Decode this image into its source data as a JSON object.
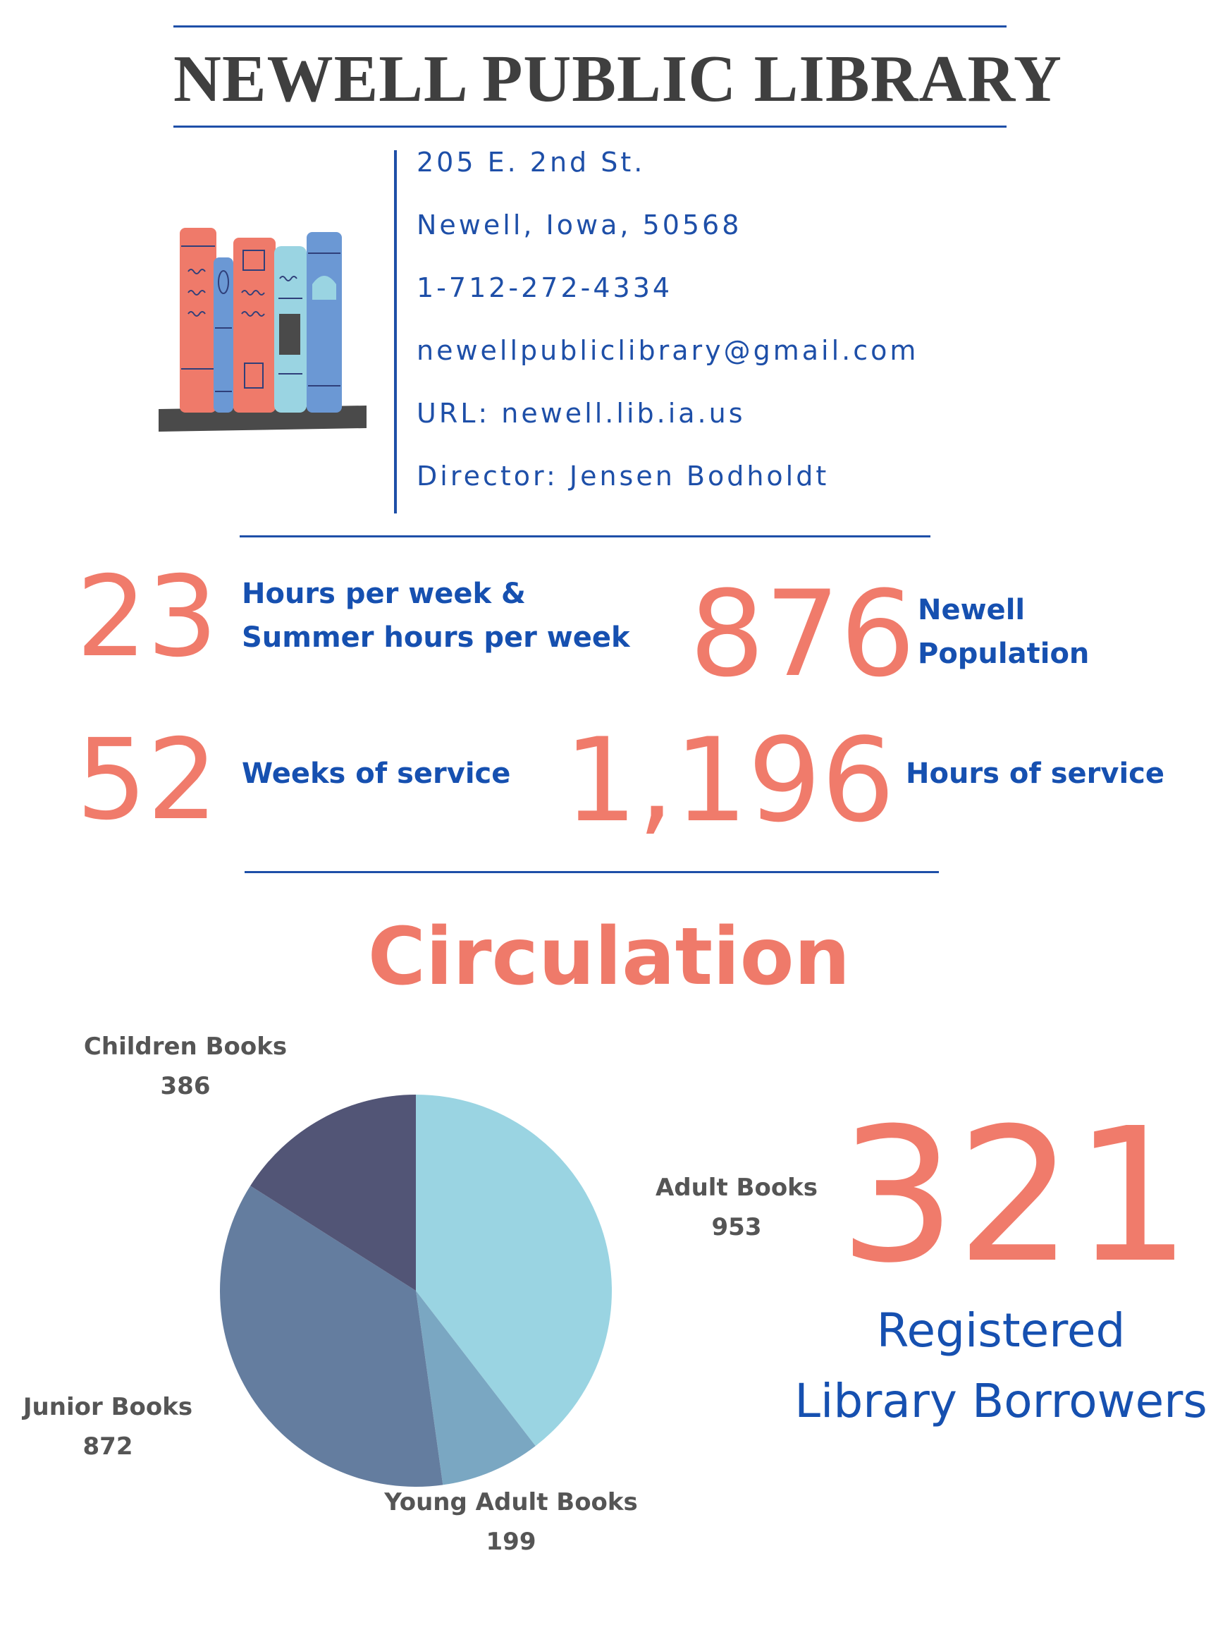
{
  "header": {
    "title": "NEWELL PUBLIC LIBRARY"
  },
  "contact": {
    "address": "205 E. 2nd St.",
    "city": "Newell, Iowa, 50568",
    "phone": "1-712-272-4334",
    "email": "newellpubliclibrary@gmail.com",
    "url": "URL: newell.lib.ia.us",
    "director": "Director: Jensen Bodholdt"
  },
  "stats": {
    "hours": {
      "value": "23",
      "label_line1": "Hours per week &",
      "label_line2": "Summer hours per week"
    },
    "population": {
      "value": "876",
      "label_line1": "Newell",
      "label_line2": "Population"
    },
    "weeks": {
      "value": "52",
      "label": "Weeks of service"
    },
    "service_hours": {
      "value": "1,196",
      "label": "Hours of service"
    }
  },
  "circulation": {
    "heading": "Circulation"
  },
  "borrowers": {
    "value": "321",
    "label_line1": "Registered",
    "label_line2": "Library Borrowers"
  },
  "colors": {
    "accent_blue": "#1e4fa8",
    "number_coral": "#f07b6b",
    "adult": "#9ad4e2",
    "young_adult": "#7aa7c2",
    "junior": "#647d9f",
    "children": "#525576"
  },
  "icons": {
    "illustration": "books-on-shelf-icon"
  },
  "chart_data": {
    "type": "pie",
    "categories": [
      "Adult Books",
      "Young Adult Books",
      "Junior Books",
      "Children Books"
    ],
    "values": [
      953,
      199,
      872,
      386
    ],
    "slice_colors": [
      "#9ad4e2",
      "#7aa7c2",
      "#647d9f",
      "#525576"
    ]
  }
}
